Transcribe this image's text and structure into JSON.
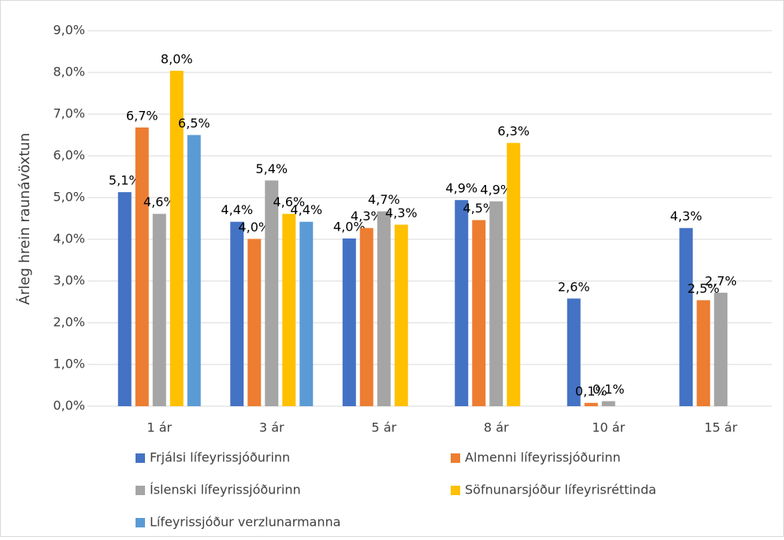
{
  "chart_data": {
    "type": "bar",
    "y_label": "Árleg hrein raunávöxtun",
    "categories": [
      "1 ár",
      "3 ár",
      "5 ár",
      "8 ár",
      "10 ár",
      "15 ár"
    ],
    "series": [
      {
        "name": "Frjálsi lífeyrissjóðurinn",
        "color": "#4472c4",
        "values": [
          5.13,
          4.42,
          4.02,
          4.94,
          2.58,
          4.27
        ],
        "value_labels": [
          "5,1%",
          "4,4%",
          "4,0%",
          "4,9%",
          "2,6%",
          "4,3%"
        ]
      },
      {
        "name": "Almenni lífeyrissjóðurinn",
        "color": "#ed7d31",
        "values": [
          6.68,
          4.01,
          4.27,
          4.46,
          0.08,
          2.54
        ],
        "value_labels": [
          "6,7%",
          "4,0%",
          "4,3%",
          "4,5%",
          "0,1%",
          "2,5%"
        ]
      },
      {
        "name": "Íslenski lífeyrissjóðurinn",
        "color": "#a5a5a5",
        "values": [
          4.61,
          5.41,
          4.67,
          4.91,
          0.12,
          2.72
        ],
        "value_labels": [
          "4,6%",
          "5,4%",
          "4,7%",
          "4,9%",
          "0,1%",
          "2,7%"
        ]
      },
      {
        "name": "Söfnunarsjóður lífeyrisréttinda",
        "color": "#ffc000",
        "values": [
          8.04,
          4.61,
          4.35,
          6.31,
          null,
          null
        ],
        "value_labels": [
          "8,0%",
          "4,6%",
          "4,3%",
          "6,3%",
          null,
          null
        ]
      },
      {
        "name": "Lífeyrissjóður verzlunarmanna",
        "color": "#5b9bd5",
        "values": [
          6.5,
          4.42,
          null,
          null,
          null,
          null
        ],
        "value_labels": [
          "6,5%",
          "4,4%",
          null,
          null,
          null,
          null
        ]
      }
    ],
    "ylim": [
      0,
      9
    ],
    "yticks": [
      {
        "value": 0,
        "label": "0,0%"
      },
      {
        "value": 1,
        "label": "1,0%"
      },
      {
        "value": 2,
        "label": "2,0%"
      },
      {
        "value": 3,
        "label": "3,0%"
      },
      {
        "value": 4,
        "label": "4,0%"
      },
      {
        "value": 5,
        "label": "5,0%"
      },
      {
        "value": 6,
        "label": "6,0%"
      },
      {
        "value": 7,
        "label": "7,0%"
      },
      {
        "value": 8,
        "label": "8,0%"
      },
      {
        "value": 9,
        "label": "9,0%"
      }
    ],
    "grid": true,
    "legend": "bottom"
  }
}
